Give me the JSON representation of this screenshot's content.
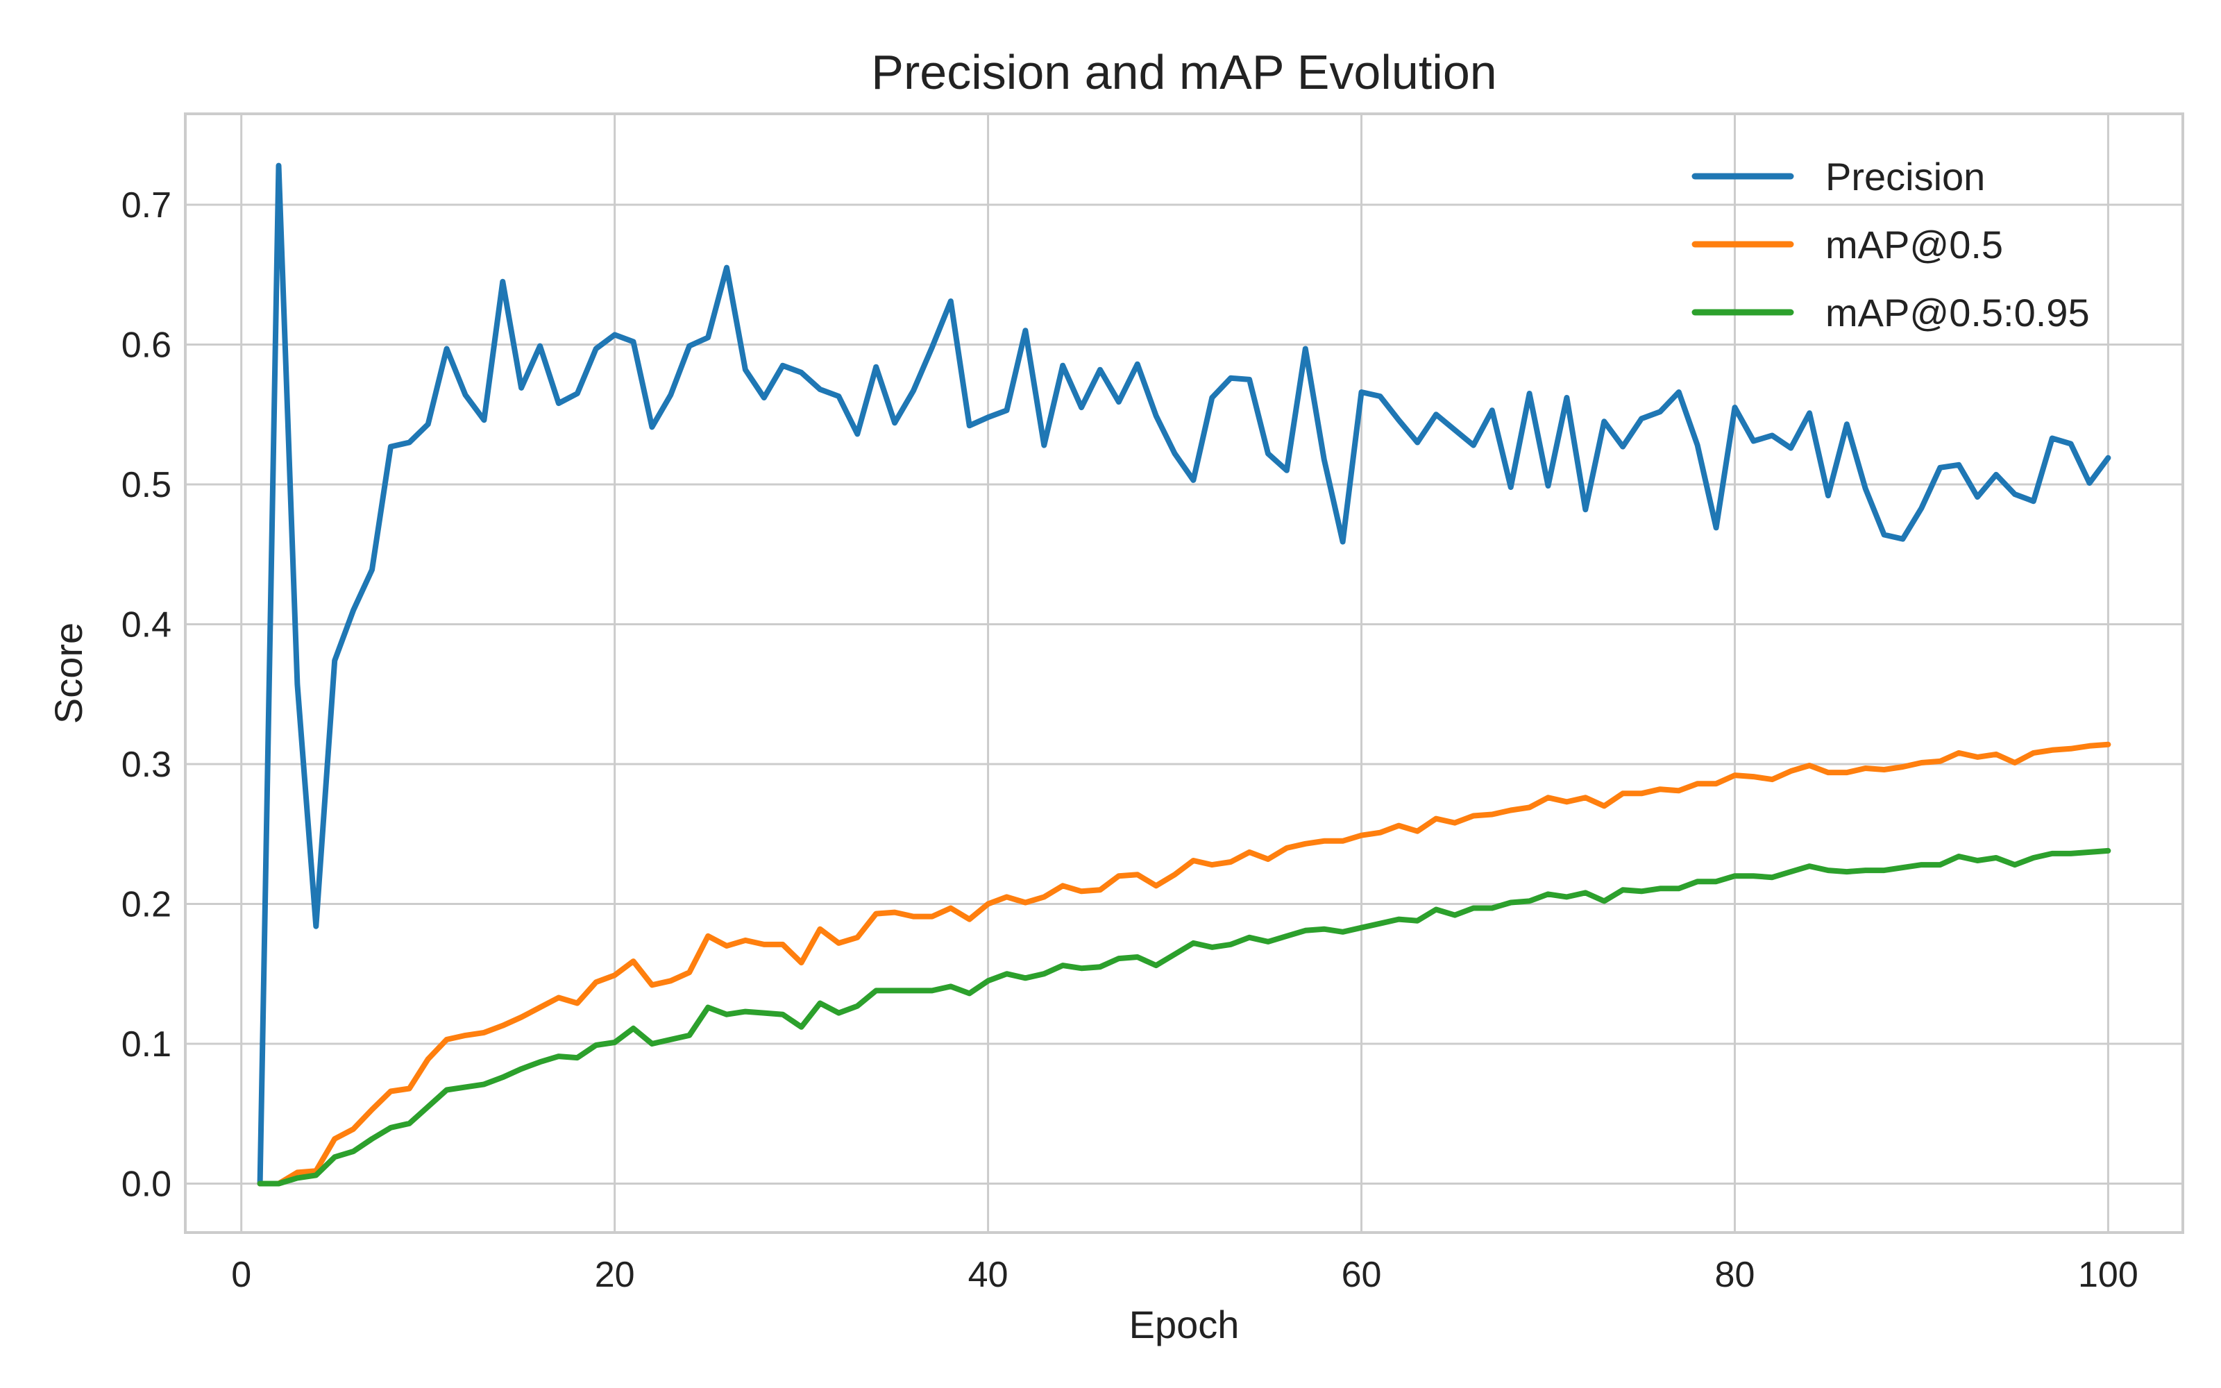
{
  "chart_data": {
    "type": "line",
    "title": "Precision and mAP Evolution",
    "xlabel": "Epoch",
    "ylabel": "Score",
    "xlim": [
      -3,
      104
    ],
    "ylim": [
      -0.035,
      0.765
    ],
    "xticks": [
      0,
      20,
      40,
      60,
      80,
      100
    ],
    "yticks": [
      0.0,
      0.1,
      0.2,
      0.3,
      0.4,
      0.5,
      0.6,
      0.7
    ],
    "ytick_labels": [
      "0.0",
      "0.1",
      "0.2",
      "0.3",
      "0.4",
      "0.5",
      "0.6",
      "0.7"
    ],
    "grid": true,
    "legend_position": "top-right",
    "series": [
      {
        "name": "Precision",
        "color": "#1f77b4",
        "values": [
          0.0,
          0.728,
          0.357,
          0.184,
          0.374,
          0.41,
          0.439,
          0.527,
          0.53,
          0.543,
          0.597,
          0.564,
          0.546,
          0.645,
          0.569,
          0.599,
          0.558,
          0.565,
          0.597,
          0.607,
          0.602,
          0.541,
          0.564,
          0.599,
          0.605,
          0.655,
          0.582,
          0.562,
          0.585,
          0.58,
          0.568,
          0.563,
          0.536,
          0.584,
          0.544,
          0.567,
          0.598,
          0.631,
          0.542,
          0.548,
          0.553,
          0.61,
          0.528,
          0.585,
          0.555,
          0.582,
          0.559,
          0.586,
          0.549,
          0.522,
          0.503,
          0.562,
          0.576,
          0.575,
          0.522,
          0.51,
          0.597,
          0.518,
          0.459,
          0.566,
          0.563,
          0.546,
          0.53,
          0.55,
          0.539,
          0.528,
          0.553,
          0.498,
          0.565,
          0.499,
          0.562,
          0.482,
          0.545,
          0.527,
          0.547,
          0.552,
          0.566,
          0.528,
          0.469,
          0.555,
          0.531,
          0.535,
          0.526,
          0.551,
          0.492,
          0.543,
          0.497,
          0.464,
          0.461,
          0.483,
          0.512,
          0.514,
          0.491,
          0.507,
          0.493,
          0.488,
          0.533,
          0.529,
          0.501,
          0.519
        ]
      },
      {
        "name": "mAP@0.5",
        "color": "#ff7f0e",
        "values": [
          0.0,
          0.0,
          0.008,
          0.009,
          0.032,
          0.039,
          0.053,
          0.066,
          0.068,
          0.089,
          0.103,
          0.106,
          0.108,
          0.113,
          0.119,
          0.126,
          0.133,
          0.129,
          0.144,
          0.149,
          0.159,
          0.142,
          0.145,
          0.151,
          0.177,
          0.17,
          0.174,
          0.171,
          0.171,
          0.158,
          0.182,
          0.172,
          0.176,
          0.193,
          0.194,
          0.191,
          0.191,
          0.197,
          0.189,
          0.2,
          0.205,
          0.201,
          0.205,
          0.213,
          0.209,
          0.21,
          0.22,
          0.221,
          0.213,
          0.221,
          0.231,
          0.228,
          0.23,
          0.237,
          0.232,
          0.24,
          0.243,
          0.245,
          0.245,
          0.249,
          0.251,
          0.256,
          0.252,
          0.261,
          0.258,
          0.263,
          0.264,
          0.267,
          0.269,
          0.276,
          0.273,
          0.276,
          0.27,
          0.279,
          0.279,
          0.282,
          0.281,
          0.286,
          0.286,
          0.292,
          0.291,
          0.289,
          0.295,
          0.299,
          0.294,
          0.294,
          0.297,
          0.296,
          0.298,
          0.301,
          0.302,
          0.308,
          0.305,
          0.307,
          0.301,
          0.308,
          0.31,
          0.311,
          0.313,
          0.314
        ]
      },
      {
        "name": "mAP@0.5:0.95",
        "color": "#2ca02c",
        "values": [
          0.0,
          0.0,
          0.004,
          0.006,
          0.019,
          0.023,
          0.032,
          0.04,
          0.043,
          0.055,
          0.067,
          0.069,
          0.071,
          0.076,
          0.082,
          0.087,
          0.091,
          0.09,
          0.099,
          0.101,
          0.111,
          0.1,
          0.103,
          0.106,
          0.126,
          0.121,
          0.123,
          0.122,
          0.121,
          0.112,
          0.129,
          0.122,
          0.127,
          0.138,
          0.138,
          0.138,
          0.138,
          0.141,
          0.136,
          0.145,
          0.15,
          0.147,
          0.15,
          0.156,
          0.154,
          0.155,
          0.161,
          0.162,
          0.156,
          0.164,
          0.172,
          0.169,
          0.171,
          0.176,
          0.173,
          0.177,
          0.181,
          0.182,
          0.18,
          0.183,
          0.186,
          0.189,
          0.188,
          0.196,
          0.192,
          0.197,
          0.197,
          0.201,
          0.202,
          0.207,
          0.205,
          0.208,
          0.202,
          0.21,
          0.209,
          0.211,
          0.211,
          0.216,
          0.216,
          0.22,
          0.22,
          0.219,
          0.223,
          0.227,
          0.224,
          0.223,
          0.224,
          0.224,
          0.226,
          0.228,
          0.228,
          0.234,
          0.231,
          0.233,
          0.228,
          0.233,
          0.236,
          0.236,
          0.237,
          0.238
        ]
      }
    ]
  }
}
